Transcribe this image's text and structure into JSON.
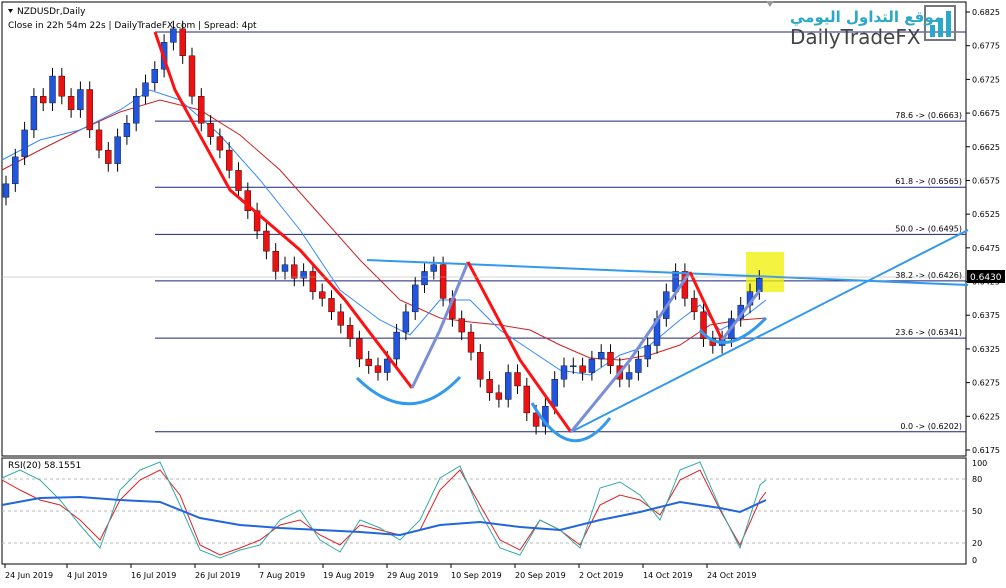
{
  "header": {
    "symbol": "NZDUSDr,Daily",
    "info": "Close in 22h 54m 22s  |  DailyTradeFX.com  |  Spread: 4pt"
  },
  "logo": {
    "arabic": "موقع التداول اليومي",
    "brand": "DailyTradeFX"
  },
  "colors": {
    "bull": "#2255dd",
    "bear": "#ee1111",
    "fib": "#1a237e",
    "trend": "#2196f3",
    "highlight": "#f0f000"
  },
  "price_axis": {
    "ticks": [
      "0.6825",
      "0.6775",
      "0.6725",
      "0.6675",
      "0.6625",
      "0.6575",
      "0.6525",
      "0.6475",
      "0.6425",
      "0.6375",
      "0.6325",
      "0.6275",
      "0.6225",
      "0.6175"
    ],
    "current": "0.6430"
  },
  "fib_levels": [
    {
      "label": "78.6 -> (0.6663)",
      "price": 0.6663
    },
    {
      "label": "61.8 -> (0.6565)",
      "price": 0.6565
    },
    {
      "label": "50.0 -> (0.6495)",
      "price": 0.6495
    },
    {
      "label": "38.2 -> (0.6426)",
      "price": 0.6426
    },
    {
      "label": "23.6 -> (0.6341)",
      "price": 0.6341
    },
    {
      "label": "0.0 -> (0.6202)",
      "price": 0.6202
    }
  ],
  "rsi": {
    "label": "RSI(20) 58.1551",
    "ticks": [
      "100",
      "80",
      "50",
      "20",
      "0"
    ]
  },
  "date_axis": [
    "24 Jun 2019",
    "4 Jul 2019",
    "16 Jul 2019",
    "26 Jul 2019",
    "7 Aug 2019",
    "19 Aug 2019",
    "29 Aug 2019",
    "10 Sep 2019",
    "20 Sep 2019",
    "2 Oct 2019",
    "14 Oct 2019",
    "24 Oct 2019"
  ],
  "chart_data": {
    "type": "candlestick",
    "series": [
      {
        "name": "",
        "values": [
          0.657,
          0.661,
          0.665,
          0.67,
          0.669,
          0.673,
          0.67,
          0.668,
          0.671,
          0.665,
          0.662,
          0.66,
          0.664,
          0.666,
          0.67,
          0.672,
          0.674,
          0.678,
          0.68,
          0.676,
          0.67,
          0.666,
          0.664,
          0.662,
          0.659,
          0.656,
          0.653,
          0.65,
          0.647,
          0.644,
          0.645,
          0.643,
          0.644,
          0.641,
          0.64,
          0.638,
          0.636,
          0.634,
          0.631,
          0.63,
          0.629,
          0.631,
          0.635,
          0.638,
          0.642,
          0.644,
          0.645,
          0.64,
          0.637,
          0.635,
          0.632,
          0.628,
          0.626,
          0.625,
          0.629,
          0.627,
          0.623,
          0.621,
          0.624,
          0.628,
          0.63,
          0.63,
          0.629,
          0.631,
          0.632,
          0.63,
          0.628,
          0.629,
          0.631,
          0.633,
          0.637,
          0.641,
          0.644,
          0.64,
          0.638,
          0.634,
          0.633,
          0.634,
          0.637,
          0.639,
          0.641,
          0.643
        ]
      }
    ]
  }
}
